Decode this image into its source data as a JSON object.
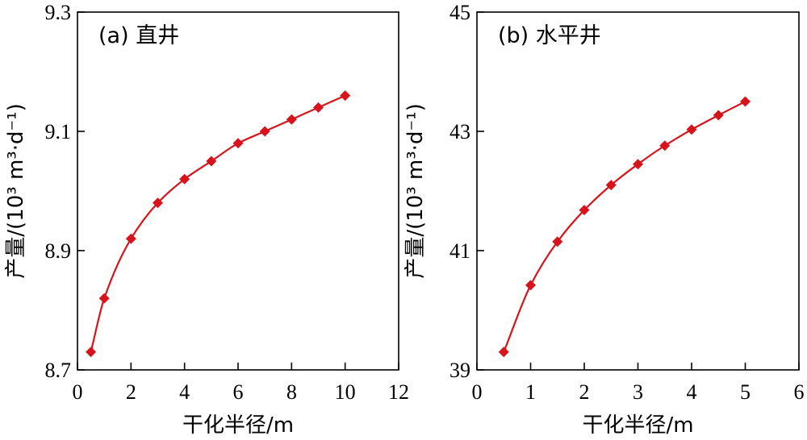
{
  "chart_data": [
    {
      "type": "line",
      "panel_label": "(a) 直井",
      "xlabel": "干化半径/m",
      "ylabel": "产量/(10³ m³·d⁻¹)",
      "xlim": [
        0,
        12
      ],
      "ylim": [
        8.7,
        9.3
      ],
      "xticks": [
        "0",
        "2",
        "4",
        "6",
        "8",
        "10",
        "12"
      ],
      "yticks": [
        "8.7",
        "8.9",
        "9.1",
        "9.3"
      ],
      "series": [
        {
          "color": "#d7141c",
          "marker": "diamond",
          "x": [
            0.5,
            1,
            2,
            3,
            4,
            5,
            6,
            7,
            8,
            9,
            10
          ],
          "y": [
            8.73,
            8.82,
            8.92,
            8.98,
            9.02,
            9.05,
            9.08,
            9.1,
            9.12,
            9.14,
            9.16
          ]
        }
      ]
    },
    {
      "type": "line",
      "panel_label": "(b) 水平井",
      "xlabel": "干化半径/m",
      "ylabel": "产量/(10³ m³·d⁻¹)",
      "xlim": [
        0,
        6
      ],
      "ylim": [
        39,
        45
      ],
      "xticks": [
        "0",
        "1",
        "2",
        "3",
        "4",
        "5",
        "6"
      ],
      "yticks": [
        "39",
        "41",
        "43",
        "45"
      ],
      "series": [
        {
          "color": "#d7141c",
          "marker": "diamond",
          "x": [
            0.5,
            1,
            1.5,
            2,
            2.5,
            3,
            3.5,
            4,
            4.5,
            5
          ],
          "y": [
            39.3,
            40.42,
            41.15,
            41.68,
            42.1,
            42.45,
            42.76,
            43.03,
            43.27,
            43.5
          ]
        }
      ]
    }
  ]
}
